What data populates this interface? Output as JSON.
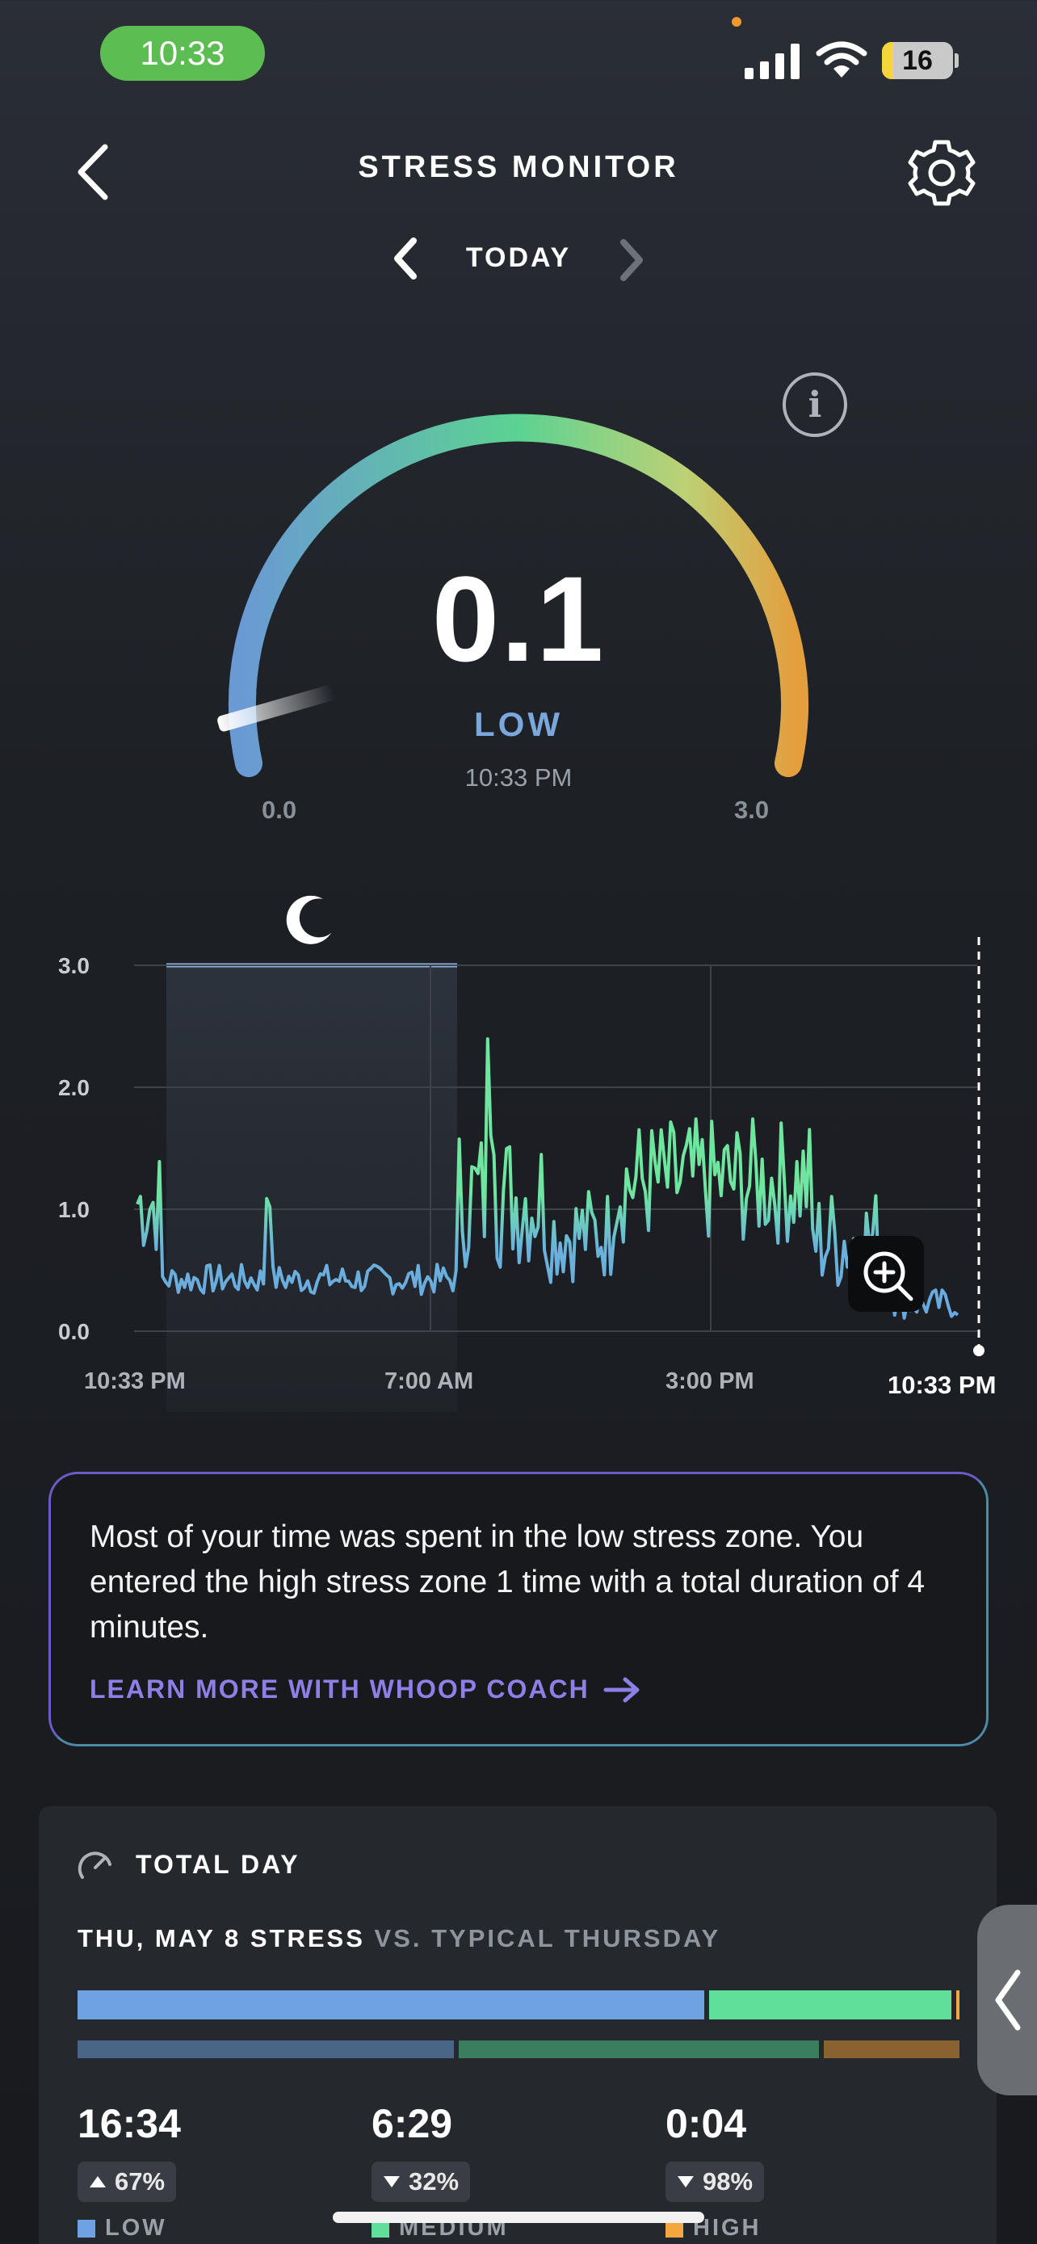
{
  "status_bar": {
    "time": "10:33",
    "battery": "16"
  },
  "header": {
    "title": "STRESS MONITOR",
    "date": "TODAY"
  },
  "gauge": {
    "value": "0.1",
    "level": "LOW",
    "time": "10:33 PM",
    "min": "0.0",
    "max": "3.0",
    "fraction": 0.033
  },
  "chart": {
    "y_ticks": [
      "3.0",
      "2.0",
      "1.0",
      "0.0"
    ],
    "x_ticks": [
      "10:33 PM",
      "7:00 AM",
      "3:00 PM",
      "10:33 PM"
    ]
  },
  "coach": {
    "message": "Most of your time was spent in the low stress zone. You entered the high stress zone 1 time with a total duration of 4 minutes.",
    "link": "LEARN MORE WITH WHOOP COACH"
  },
  "total_day": {
    "title": "TOTAL DAY",
    "compare_main": "THU, MAY 8 STRESS",
    "compare_dim": "VS. TYPICAL THURSDAY",
    "stats": [
      {
        "value": "16:34",
        "delta": "67%",
        "direction": "up",
        "label": "LOW",
        "color": "#6fa2e0"
      },
      {
        "value": "6:29",
        "delta": "32%",
        "direction": "down",
        "label": "MEDIUM",
        "color": "#5fe099"
      },
      {
        "value": "0:04",
        "delta": "98%",
        "direction": "down",
        "label": "HIGH",
        "color": "#f3a73e"
      }
    ]
  },
  "colors": {
    "low": "#6fa2e0",
    "medium": "#5fe099",
    "high": "#f3a73e",
    "accent": "#8c7fe6"
  }
}
